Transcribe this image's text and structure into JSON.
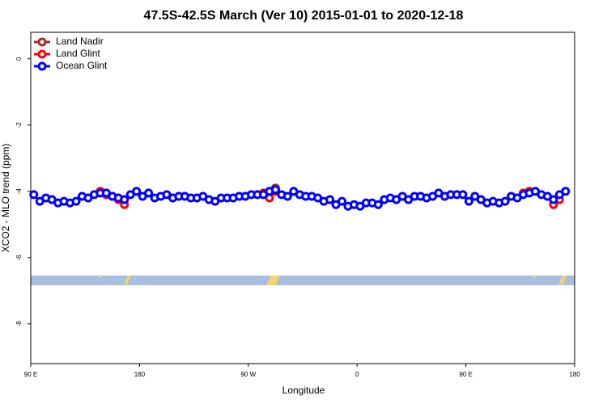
{
  "chart_data": {
    "type": "line",
    "title": "47.5S-42.5S March (Ver 10)   2015-01-01 to 2020-12-18",
    "x_label": "Longitude",
    "y_label": "XCO2 - MLO trend (ppm)",
    "xlim": [
      90,
      540
    ],
    "ylim": [
      -9.2,
      0.8
    ],
    "xticks": [
      {
        "value": 90,
        "label": "90 E"
      },
      180,
      {
        "value": 270,
        "label": "90 W"
      },
      {
        "value": 360,
        "label": "0"
      },
      {
        "value": 450,
        "label": "90 E"
      },
      {
        "value": 540,
        "label": "180"
      }
    ],
    "yticks": [
      0,
      -2,
      -4,
      -6,
      -8
    ],
    "legend_position": "upper-left",
    "series": [
      {
        "name": "Land Nadir",
        "color": "#a52a2a",
        "x": [
          287.5,
          292.5
        ],
        "values": [
          -4.05,
          -3.9
        ]
      },
      {
        "name": "Land Glint",
        "color": "#ff0000",
        "x": [
          147.5,
          152.5,
          157.5,
          162.5,
          167.5,
          172.5,
          282.5,
          287.5,
          292.5,
          297.5,
          497.5,
          502.5,
          507.5,
          522.5,
          527.5
        ],
        "values": [
          -4.0,
          -4.1,
          -4.15,
          -4.25,
          -4.4,
          null,
          -4.05,
          -4.2,
          -4.0,
          null,
          -4.05,
          -4.0,
          null,
          -4.4,
          -4.25
        ]
      },
      {
        "name": "Ocean Glint",
        "color": "#0000ff",
        "x": [
          92.5,
          97.5,
          102.5,
          107.5,
          112.5,
          117.5,
          122.5,
          127.5,
          132.5,
          137.5,
          142.5,
          147.5,
          152.5,
          157.5,
          162.5,
          167.5,
          172.5,
          177.5,
          182.5,
          187.5,
          192.5,
          197.5,
          202.5,
          207.5,
          212.5,
          217.5,
          222.5,
          227.5,
          232.5,
          237.5,
          242.5,
          247.5,
          252.5,
          257.5,
          262.5,
          267.5,
          272.5,
          277.5,
          282.5,
          287.5,
          292.5,
          297.5,
          302.5,
          307.5,
          312.5,
          317.5,
          322.5,
          327.5,
          332.5,
          337.5,
          342.5,
          347.5,
          352.5,
          357.5,
          362.5,
          367.5,
          372.5,
          377.5,
          382.5,
          387.5,
          392.5,
          397.5,
          402.5,
          407.5,
          412.5,
          417.5,
          422.5,
          427.5,
          432.5,
          437.5,
          442.5,
          447.5,
          452.5,
          457.5,
          462.5,
          467.5,
          472.5,
          477.5,
          482.5,
          487.5,
          492.5,
          497.5,
          502.5,
          507.5,
          512.5,
          517.5,
          522.5,
          527.5,
          532.5
        ],
        "values": [
          -4.1,
          -4.3,
          -4.2,
          -4.25,
          -4.35,
          -4.3,
          -4.35,
          -4.3,
          -4.15,
          -4.2,
          -4.1,
          -4.05,
          -4.05,
          -4.15,
          -4.2,
          -4.25,
          -4.1,
          -4.0,
          -4.15,
          -4.05,
          -4.2,
          -4.15,
          -4.1,
          -4.2,
          -4.15,
          -4.15,
          -4.2,
          -4.2,
          -4.15,
          -4.25,
          -4.3,
          -4.2,
          -4.2,
          -4.2,
          -4.15,
          -4.15,
          -4.1,
          -4.1,
          -4.1,
          -4.0,
          -3.95,
          -4.1,
          -4.15,
          -4.0,
          -4.1,
          -4.15,
          -4.15,
          -4.2,
          -4.3,
          -4.25,
          -4.4,
          -4.3,
          -4.45,
          -4.4,
          -4.45,
          -4.35,
          -4.35,
          -4.4,
          -4.25,
          -4.2,
          -4.25,
          -4.15,
          -4.25,
          -4.15,
          -4.15,
          -4.2,
          -4.15,
          -4.05,
          -4.15,
          -4.1,
          -4.1,
          -4.1,
          -4.3,
          -4.15,
          -4.25,
          -4.35,
          -4.3,
          -4.35,
          -4.3,
          -4.15,
          -4.2,
          -4.1,
          -4.05,
          -4.0,
          -4.1,
          -4.15,
          -4.25,
          -4.1,
          -4.0
        ]
      }
    ]
  }
}
